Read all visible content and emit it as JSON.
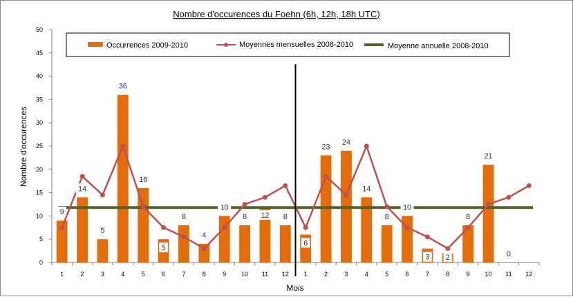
{
  "chart_data": {
    "type": "bar",
    "title": "Nombre d'occurences du Foehn (6h, 12h, 18h UTC)",
    "xlabel": "Mois",
    "ylabel": "Nombre d'occurences",
    "ylim": [
      0,
      50
    ],
    "yticks": [
      0,
      5,
      10,
      15,
      20,
      25,
      30,
      35,
      40,
      45,
      50
    ],
    "grid": false,
    "legend_position": "top",
    "categories": [
      "1",
      "2",
      "3",
      "4",
      "5",
      "6",
      "7",
      "8",
      "9",
      "10",
      "11",
      "12",
      "1",
      "2",
      "3",
      "4",
      "5",
      "6",
      "7",
      "8",
      "9",
      "10",
      "11",
      "12"
    ],
    "series": [
      {
        "name": "Occurrences 2009-2010",
        "type": "bar",
        "color": "#e46c0a",
        "values": [
          9,
          14,
          5,
          36,
          16,
          5,
          8,
          4,
          10,
          8,
          12,
          8,
          6,
          23,
          24,
          14,
          8,
          10,
          3,
          2,
          8,
          21,
          0,
          null
        ],
        "data_labels": [
          "9",
          "14",
          "5",
          "36",
          "16",
          "5",
          "8",
          "4",
          "10",
          "8",
          "12",
          "8",
          "6",
          "23",
          "24",
          "14",
          "8",
          "10",
          "3",
          "2",
          "8",
          "21",
          "0",
          ""
        ]
      },
      {
        "name": "Moyennes mensuelles 2008-2010",
        "type": "line",
        "color": "#c0504d",
        "values": [
          7.5,
          18.5,
          14.5,
          25,
          12,
          7.5,
          5.5,
          3,
          7.5,
          12.5,
          14,
          16.5,
          7.5,
          18.5,
          14.5,
          25,
          12,
          7.5,
          5.5,
          3,
          7.5,
          12.5,
          14,
          16.5
        ]
      },
      {
        "name": "Moyenne annuelle 2008-2010",
        "type": "hline",
        "color": "#4f6228",
        "value": 11.8
      }
    ],
    "separator_between_index": 11
  }
}
